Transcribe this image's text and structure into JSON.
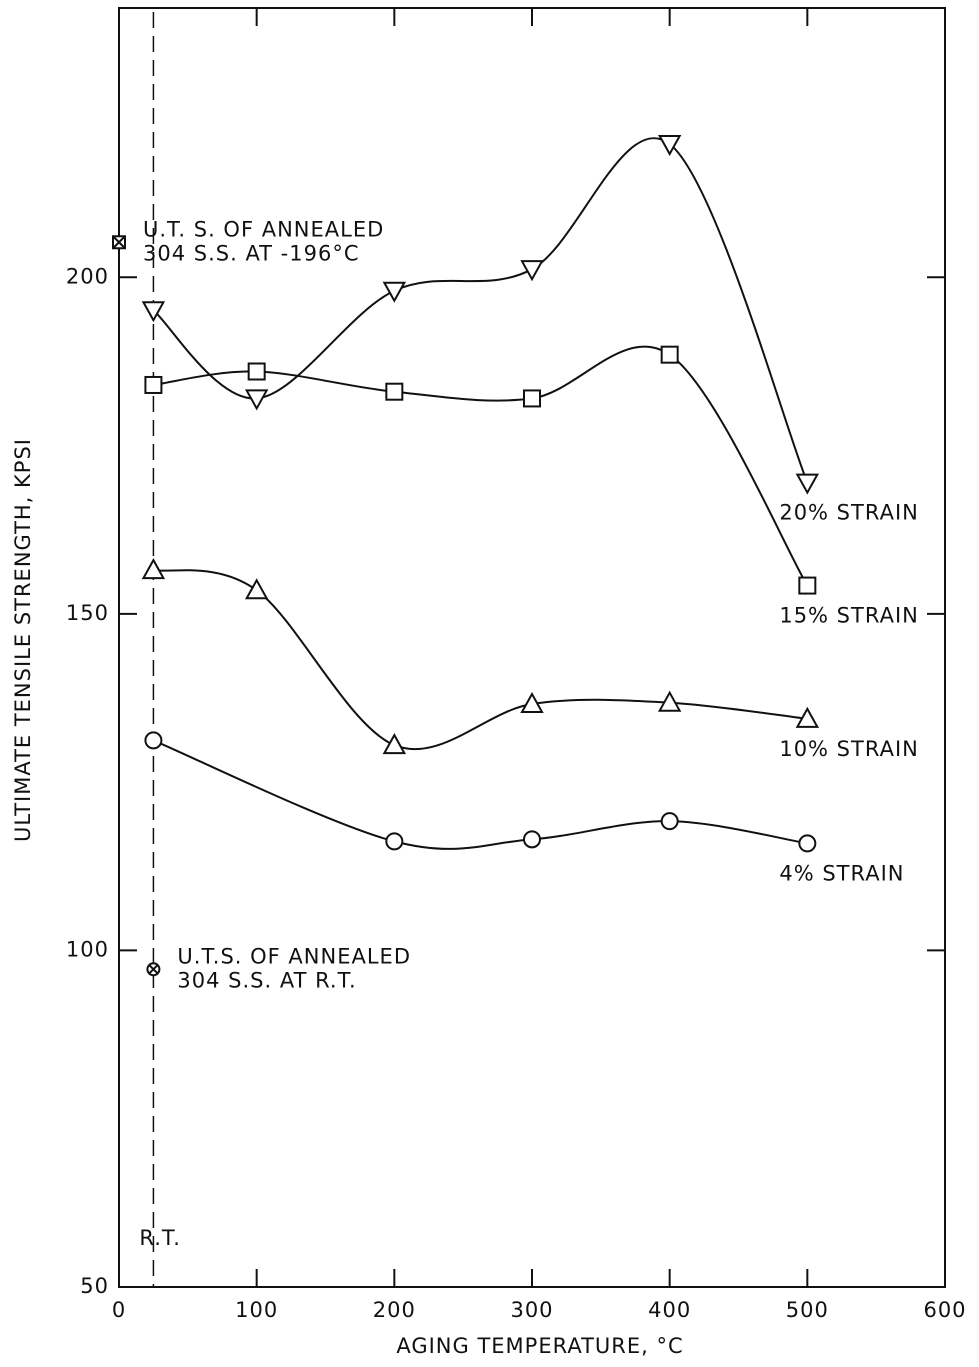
{
  "chart_data": {
    "type": "line",
    "xlabel": "AGING TEMPERATURE, °C",
    "ylabel": "ULTIMATE TENSILE STRENGTH, KPSI",
    "xlim": [
      0,
      600
    ],
    "xticks": [
      0,
      100,
      200,
      300,
      400,
      500,
      600
    ],
    "ylim": [
      50,
      240
    ],
    "yticks": [
      50,
      100,
      150,
      200
    ],
    "color": "#111111",
    "series": [
      {
        "name": "20% STRAIN",
        "marker": "triangle-down",
        "x": [
          25,
          100,
          200,
          300,
          400,
          500
        ],
        "values": [
          195.1,
          182,
          198,
          201.2,
          219.8,
          169.5
        ]
      },
      {
        "name": "15% STRAIN",
        "marker": "square",
        "x": [
          25,
          100,
          200,
          300,
          400,
          500
        ],
        "values": [
          184,
          186,
          183,
          182,
          188.5,
          154.2
        ]
      },
      {
        "name": "10% STRAIN",
        "marker": "triangle-up",
        "x": [
          25,
          100,
          200,
          300,
          400,
          500
        ],
        "values": [
          156.5,
          153.5,
          130.5,
          136.6,
          136.8,
          134.4
        ]
      },
      {
        "name": "4% STRAIN",
        "marker": "circle",
        "x": [
          25,
          200,
          300,
          400,
          500
        ],
        "values": [
          131.2,
          116.2,
          116.5,
          119.2,
          115.9
        ]
      }
    ],
    "annotations": [
      {
        "marker": "crossed-square",
        "x": 0,
        "y": 205.2,
        "text": [
          "U.T. S. OF ANNEALED",
          "304 S.S. AT -196°C"
        ]
      },
      {
        "marker": "crossed-circle",
        "x": 25,
        "y": 97.2,
        "text": [
          "U.T.S. OF ANNEALED",
          "304 S.S. AT R.T."
        ]
      }
    ],
    "reference_line": {
      "x": 25,
      "label": "R.T."
    }
  }
}
